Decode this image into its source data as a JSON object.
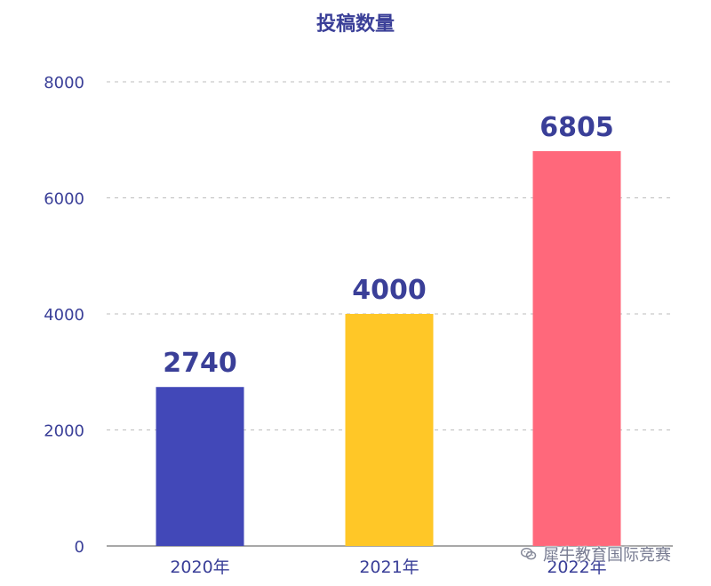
{
  "chart_data": {
    "type": "bar",
    "title": "投稿数量",
    "categories": [
      "2020年",
      "2021年",
      "2022年"
    ],
    "values": [
      2740,
      4000,
      6805
    ],
    "colors": [
      "#4248b8",
      "#ffc727",
      "#ff687b"
    ],
    "ylim": [
      0,
      8000
    ],
    "yticks": [
      0,
      2000,
      4000,
      6000,
      8000
    ],
    "grid": true,
    "legend": "none",
    "xlabel": "",
    "ylabel": ""
  },
  "watermark": {
    "text": "犀牛教育国际竞赛",
    "icon": "wechat-icon"
  }
}
